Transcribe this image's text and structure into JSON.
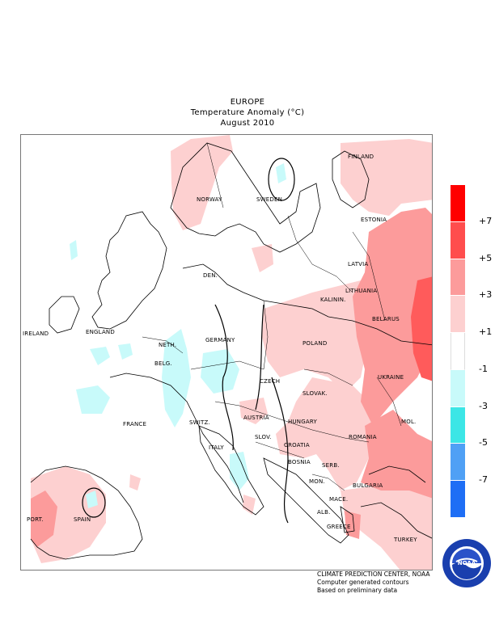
{
  "title": {
    "line1": "EUROPE",
    "line2": "Temperature Anomaly (°C)",
    "line3": "August 2010"
  },
  "map": {
    "region": "Europe",
    "variable": "Temperature Anomaly",
    "units": "°C",
    "period": "August 2010",
    "country_labels": [
      "FINLAND",
      "NORWAY",
      "SWEDEN",
      "ESTONIA",
      "LATVIA",
      "DEN.",
      "LITHUANIA",
      "KALININ.",
      "IRELAND",
      "ENGLAND",
      "BELARUS",
      "POLAND",
      "NETH.",
      "GERMANY",
      "BELG.",
      "UKRAINE",
      "CZECH",
      "SLOVAK.",
      "FRANCE",
      "SWITZ.",
      "AUSTRIA",
      "HUNGARY",
      "MOL.",
      "SLOV.",
      "CROATIA",
      "ROMANIA",
      "ITALY",
      "BOSNIA",
      "SERB.",
      "MON.",
      "BULGARIA",
      "PORT.",
      "SPAIN",
      "MACE.",
      "ALB.",
      "GREECE",
      "TURKEY"
    ]
  },
  "legend": {
    "colors": [
      "#ff0000",
      "#ff4d4d",
      "#fc9b9b",
      "#fdd0d0",
      "#ffffff",
      "#c8fafa",
      "#3ce6e6",
      "#4fa0f5",
      "#1e6ef5"
    ],
    "labels": [
      "+7",
      "+5",
      "+3",
      "+1",
      "-1",
      "-3",
      "-5",
      "-7"
    ]
  },
  "credits": {
    "line1": "CLIMATE PREDICTION CENTER, NOAA",
    "line2": "Computer generated contours",
    "line3": "Based on preliminary data"
  },
  "logo": {
    "name": "noaa-logo",
    "center_text": "NOAA",
    "ring_top": "NATIONAL OCEANIC AND ATMOSPHERIC ADMINISTRATION",
    "ring_bottom": "U.S. DEPARTMENT OF COMMERCE"
  }
}
